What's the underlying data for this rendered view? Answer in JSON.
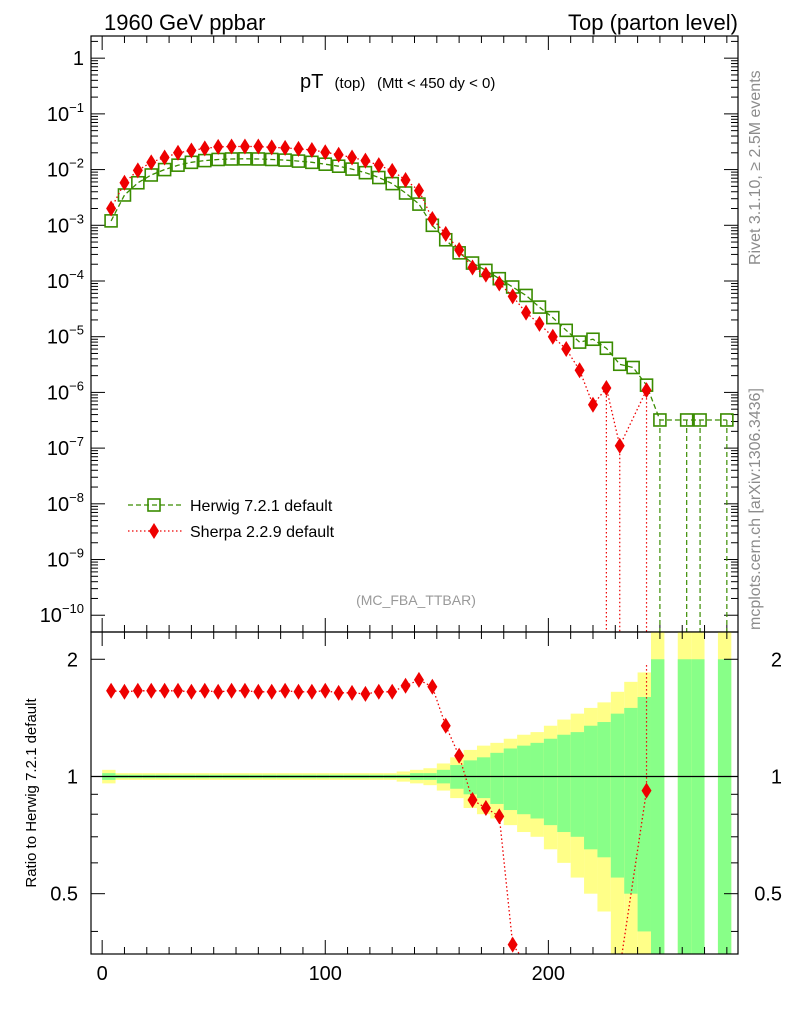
{
  "header": {
    "left": "1960 GeV ppbar",
    "right": "Top (parton level)"
  },
  "side": {
    "rivet": "Rivet 3.1.10, ≥ 2.5M events",
    "mcplots": "mcplots.cern.ch [arXiv:1306.3436]"
  },
  "chart_data": [
    {
      "type": "scatter",
      "title_main": "pT",
      "title_small": "(top)",
      "title_cut": "(Mtt < 450 dy < 0)",
      "watermark": "(MC_FBA_TTBAR)",
      "xlabel": "",
      "ylabel": "",
      "yscale": "log",
      "xlim": [
        -5,
        285
      ],
      "ylim": [
        5e-11,
        2.5
      ],
      "y_tick_labels": [
        {
          "exp": 0,
          "label": "1"
        },
        {
          "exp": -1,
          "base": "10",
          "sup": "−1"
        },
        {
          "exp": -2,
          "base": "10",
          "sup": "−2"
        },
        {
          "exp": -3,
          "base": "10",
          "sup": "−3"
        },
        {
          "exp": -4,
          "base": "10",
          "sup": "−4"
        },
        {
          "exp": -5,
          "base": "10",
          "sup": "−5"
        },
        {
          "exp": -6,
          "base": "10",
          "sup": "−6"
        },
        {
          "exp": -7,
          "base": "10",
          "sup": "−7"
        },
        {
          "exp": -8,
          "base": "10",
          "sup": "−8"
        },
        {
          "exp": -9,
          "base": "10",
          "sup": "−9"
        },
        {
          "exp": -10,
          "base": "10",
          "sup": "−10"
        }
      ],
      "legend_placement": "bottom-left",
      "series": [
        {
          "name": "Herwig 7.2.1 default",
          "color": "#3a8c00",
          "marker": "open-square",
          "line": "dashed",
          "x": [
            4,
            10,
            16,
            22,
            28,
            34,
            40,
            46,
            52,
            58,
            64,
            70,
            76,
            82,
            88,
            94,
            100,
            106,
            112,
            118,
            124,
            130,
            136,
            142,
            148,
            154,
            160,
            166,
            172,
            178,
            184,
            190,
            196,
            202,
            208,
            214,
            220,
            226,
            232,
            238,
            244,
            250,
            262,
            268,
            280
          ],
          "y": [
            0.0012,
            0.0035,
            0.0058,
            0.008,
            0.01,
            0.012,
            0.0135,
            0.0145,
            0.0152,
            0.0155,
            0.0156,
            0.0155,
            0.0152,
            0.0148,
            0.0142,
            0.0135,
            0.0125,
            0.0115,
            0.0102,
            0.0088,
            0.0072,
            0.0056,
            0.0038,
            0.0024,
            0.001,
            0.00055,
            0.00032,
            0.00021,
            0.000155,
            0.00011,
            7.8e-05,
            5.5e-05,
            3.4e-05,
            2.2e-05,
            1.3e-05,
            8e-06,
            9e-06,
            6.2e-06,
            3.2e-06,
            2.8e-06,
            1.35e-06,
            3.2e-07,
            3.2e-07,
            3.2e-07,
            3.2e-07
          ]
        },
        {
          "name": "Sherpa 2.2.9 default",
          "color": "#ee0000",
          "marker": "diamond",
          "line": "dotted",
          "x": [
            4,
            10,
            16,
            22,
            28,
            34,
            40,
            46,
            52,
            58,
            64,
            70,
            76,
            82,
            88,
            94,
            100,
            106,
            112,
            118,
            124,
            130,
            136,
            142,
            148,
            154,
            160,
            166,
            172,
            178,
            184,
            190,
            196,
            202,
            208,
            214,
            220,
            226,
            232,
            244
          ],
          "y": [
            0.002,
            0.0058,
            0.0097,
            0.0135,
            0.0165,
            0.02,
            0.022,
            0.024,
            0.0255,
            0.026,
            0.026,
            0.026,
            0.025,
            0.0245,
            0.0235,
            0.0225,
            0.0205,
            0.0185,
            0.0165,
            0.0145,
            0.012,
            0.0095,
            0.0065,
            0.0042,
            0.0013,
            0.0007,
            0.00036,
            0.000175,
            0.00013,
            9e-05,
            5.3e-05,
            2.7e-05,
            1.7e-05,
            1e-05,
            6e-06,
            2.5e-06,
            6e-07,
            1.2e-06,
            1.1e-07,
            1.1e-06
          ]
        }
      ]
    },
    {
      "type": "scatter",
      "ylabel": "Ratio to Herwig 7.2.1 default",
      "xlim": [
        -5,
        285
      ],
      "ylim": [
        0.35,
        2.35
      ],
      "x_tick_labels": [
        "0",
        "100",
        "200"
      ],
      "y_tick_labels": [
        "0.5",
        "1",
        "2"
      ],
      "reference_line": 1,
      "series": [
        {
          "name": "Sherpa 2.2.9 default",
          "color": "#ee0000",
          "x": [
            4,
            10,
            16,
            22,
            28,
            34,
            40,
            46,
            52,
            58,
            64,
            70,
            76,
            82,
            88,
            94,
            100,
            106,
            112,
            118,
            124,
            130,
            136,
            142,
            148,
            154,
            160,
            166,
            172,
            178,
            184,
            244
          ],
          "y": [
            1.66,
            1.65,
            1.66,
            1.66,
            1.66,
            1.66,
            1.65,
            1.66,
            1.65,
            1.66,
            1.66,
            1.65,
            1.65,
            1.66,
            1.65,
            1.65,
            1.66,
            1.64,
            1.64,
            1.63,
            1.65,
            1.65,
            1.71,
            1.77,
            1.7,
            1.35,
            1.13,
            0.87,
            0.83,
            0.79,
            0.37,
            0.92
          ]
        }
      ],
      "uncertainty_bands": {
        "bins": [
          0,
          6,
          12,
          18,
          24,
          30,
          36,
          42,
          48,
          54,
          60,
          66,
          72,
          78,
          84,
          90,
          96,
          102,
          108,
          114,
          120,
          126,
          132,
          138,
          144,
          150,
          156,
          162,
          168,
          174,
          180,
          186,
          192,
          198,
          204,
          210,
          216,
          222,
          228,
          234,
          240,
          246,
          252,
          258,
          264,
          270,
          276,
          282
        ],
        "green_rel": [
          0.02,
          0.01,
          0.01,
          0.01,
          0.01,
          0.01,
          0.01,
          0.01,
          0.01,
          0.01,
          0.01,
          0.01,
          0.01,
          0.01,
          0.01,
          0.01,
          0.01,
          0.01,
          0.01,
          0.01,
          0.01,
          0.01,
          0.01,
          0.02,
          0.02,
          0.04,
          0.07,
          0.1,
          0.12,
          0.15,
          0.18,
          0.2,
          0.22,
          0.25,
          0.28,
          0.3,
          0.35,
          0.38,
          0.45,
          0.5,
          0.6,
          1.0,
          0,
          1.0,
          1.0,
          0,
          1.0
        ],
        "yellow_rel": [
          0.04,
          0.02,
          0.02,
          0.02,
          0.02,
          0.02,
          0.02,
          0.02,
          0.02,
          0.02,
          0.02,
          0.02,
          0.02,
          0.02,
          0.02,
          0.02,
          0.02,
          0.02,
          0.02,
          0.02,
          0.02,
          0.02,
          0.03,
          0.04,
          0.05,
          0.08,
          0.12,
          0.17,
          0.2,
          0.22,
          0.25,
          0.28,
          0.3,
          0.35,
          0.4,
          0.45,
          0.5,
          0.55,
          0.65,
          0.75,
          0.85,
          1.5,
          0,
          1.5,
          1.5,
          0,
          1.5
        ]
      }
    }
  ]
}
